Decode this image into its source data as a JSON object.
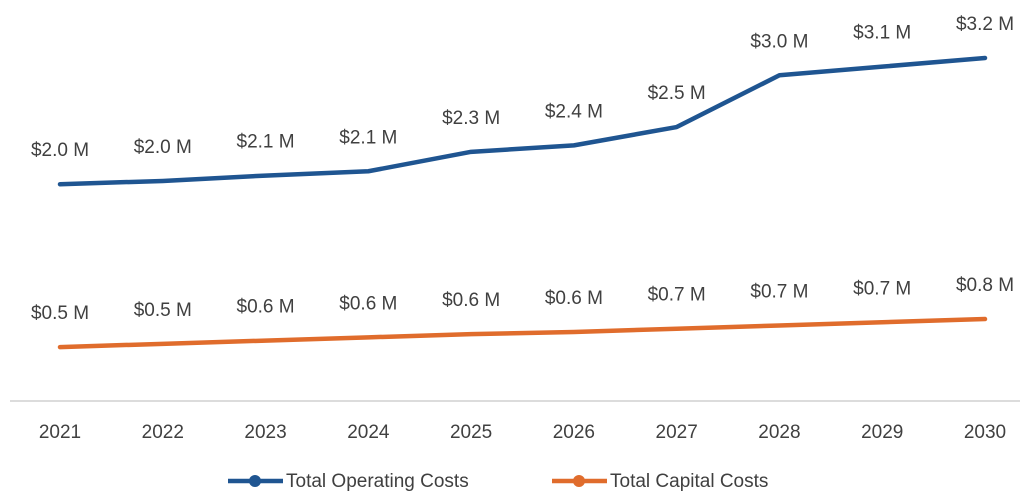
{
  "chart_data": {
    "type": "line",
    "categories": [
      "2021",
      "2022",
      "2023",
      "2024",
      "2025",
      "2026",
      "2027",
      "2028",
      "2029",
      "2030"
    ],
    "series": [
      {
        "name": "Total Operating Costs",
        "color": "#1f5591",
        "values": [
          2.01,
          2.04,
          2.09,
          2.13,
          2.31,
          2.37,
          2.54,
          3.02,
          3.1,
          3.18
        ],
        "value_labels": [
          "$2.0 M",
          "$2.0 M",
          "$2.1 M",
          "$2.1 M",
          "$2.3 M",
          "$2.4 M",
          "$2.5 M",
          "$3.0 M",
          "$3.1 M",
          "$3.2 M"
        ]
      },
      {
        "name": "Total Capital Costs",
        "color": "#e06c2c",
        "values": [
          0.5,
          0.53,
          0.56,
          0.59,
          0.62,
          0.64,
          0.67,
          0.7,
          0.73,
          0.76
        ],
        "value_labels": [
          "$0.5 M",
          "$0.5 M",
          "$0.6 M",
          "$0.6 M",
          "$0.6 M",
          "$0.6 M",
          "$0.7 M",
          "$0.7 M",
          "$0.7 M",
          "$0.8 M"
        ]
      }
    ]
  }
}
